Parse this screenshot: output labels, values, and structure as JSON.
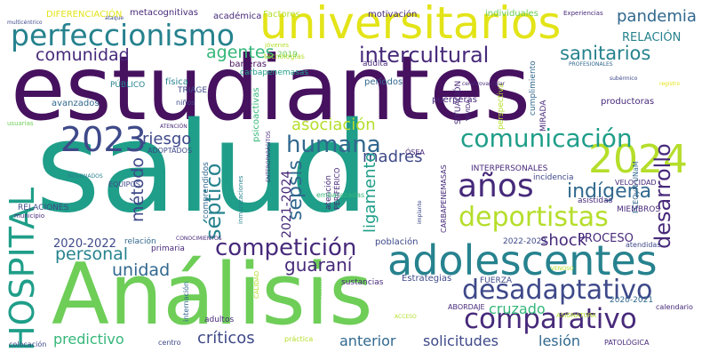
{
  "colors": {
    "dark_purple": "#46115f",
    "purple": "#472a7a",
    "indigo": "#3e4989",
    "blue": "#31688e",
    "teal_blue": "#26828e",
    "teal": "#1f9e89",
    "green_teal": "#35b779",
    "green": "#6ece58",
    "lime": "#b5de2b",
    "yellow": "#e3e418"
  },
  "words": [
    "estudiantes",
    "salud",
    "Análisis",
    "universitarios",
    "perfeccionismo",
    "adolescentes",
    "competición",
    "desadaptativo",
    "comparativo",
    "2024",
    "2023",
    "HOSPITAL",
    "deportistas",
    "años",
    "comunicación",
    "humana",
    "sanitarios",
    "intercultural",
    "comunidad",
    "agentes",
    "pandemia",
    "desarrollo",
    "indígena",
    "sepsis",
    "séptico",
    "asociación",
    "madres",
    "riesgo",
    "método",
    "personal",
    "unidad",
    "shock",
    "guaraní",
    "ligamento",
    "cruzado",
    "críticos",
    "predictivo",
    "anterior",
    "solicitudes",
    "lesión",
    "2021-2024",
    "2020-2022",
    "PROCESO",
    "RELACIÓN",
    "DIFERENCIACIÓN",
    "metacognitivas",
    "académica",
    "Factores",
    "motivación",
    "individuales",
    "Experiencias",
    "multicéntrico",
    "ataque",
    "jóvenes",
    "tecnologías",
    "2019",
    "barreras",
    "adulta",
    "PÚBLICO",
    "física",
    "TRIAGE",
    "avanzados",
    "niños",
    "carbapenemasas",
    "psicoactivas",
    "períodos",
    "SITUACIÓN",
    "cumplimiento",
    "productoras",
    "perspectiva",
    "PROFESIONALES",
    "registro",
    "subérmico",
    "cerebrovascular",
    "MIRADA",
    "puérperas",
    "VÍVIDA",
    "usuarias",
    "ATENCIÓN",
    "ADOPTADOS",
    "INTERNADOS",
    "EQUIPOS",
    "RELACIONES",
    "municipio",
    "comprendidos",
    "inmunizaciones",
    "ENTEROPARÁSITOS",
    "PERIFÉRICO",
    "atención",
    "ÓSEA",
    "CARBAPENEMASAS",
    "INTERPERSONALES",
    "incidencia",
    "asistidas",
    "MIEMBROS",
    "VELOCIDAD",
    "FCEQyN-UNaM",
    "implante",
    "embarazadas",
    "relación",
    "primaria",
    "CONOCIMIENTOS",
    "población",
    "2022-2023",
    "atendidas",
    "FUERZA",
    "Estrategias",
    "sustancias",
    "internación",
    "CALIDAD",
    "Adultos",
    "VENOSO",
    "ACCESO",
    "ABORDAJE",
    "2020-2021",
    "calendario",
    "ASIGNATURA",
    "PATOLÓGICA",
    "colocación",
    "centro",
    "adultos",
    "práctica"
  ]
}
